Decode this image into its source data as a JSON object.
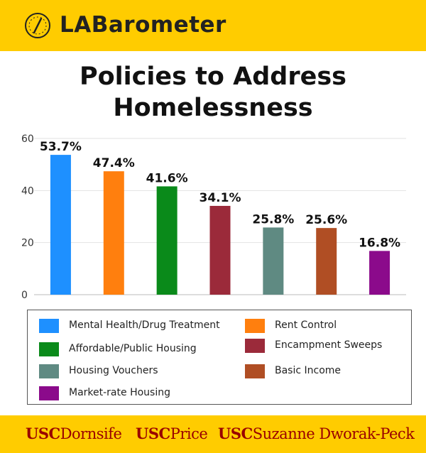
{
  "header": {
    "brand": "LABarometer",
    "logo_icon": "compass-icon"
  },
  "title_line1": "Policies to Address",
  "title_line2": "Homelessness",
  "chart_data": {
    "type": "bar",
    "categories": [
      "Mental Health/Drug Treatment",
      "Rent Control",
      "Affordable/Public Housing",
      "Encampment Sweeps",
      "Housing Vouchers",
      "Basic Income",
      "Market-rate Housing"
    ],
    "values": [
      53.7,
      47.4,
      41.6,
      34.1,
      25.8,
      25.6,
      16.8
    ],
    "data_labels": [
      "53.7%",
      "47.4%",
      "41.6%",
      "34.1%",
      "25.8%",
      "25.6%",
      "16.8%"
    ],
    "colors": [
      "#1e90ff",
      "#ff7f0e",
      "#0a8a1a",
      "#9b2a3a",
      "#5f8a82",
      "#b04e24",
      "#8b0a8b"
    ],
    "ylim": [
      0,
      60
    ],
    "yticks": [
      0,
      20,
      40,
      60
    ],
    "grid": true,
    "title": "Policies to Address Homelessness",
    "xlabel": "",
    "ylabel": ""
  },
  "legend": {
    "items": [
      {
        "label": "Mental Health/Drug Treatment",
        "color": "#1e90ff"
      },
      {
        "label": "Rent Control",
        "color": "#ff7f0e"
      },
      {
        "label": "Affordable/Public Housing",
        "color": "#0a8a1a"
      },
      {
        "label": "Encampment Sweeps",
        "color": "#9b2a3a"
      },
      {
        "label": "Housing Vouchers",
        "color": "#5f8a82"
      },
      {
        "label": "Basic Income",
        "color": "#b04e24"
      },
      {
        "label": "Market-rate Housing",
        "color": "#8b0a8b"
      }
    ]
  },
  "footer": {
    "schools": [
      {
        "prefix": "USC",
        "name": "Dornsife"
      },
      {
        "prefix": "USC",
        "name": "Price"
      },
      {
        "prefix": "USC",
        "name": "Suzanne Dworak-Peck"
      }
    ]
  },
  "colors": {
    "brand_yellow": "#ffcc00",
    "usc_cardinal": "#990000"
  }
}
